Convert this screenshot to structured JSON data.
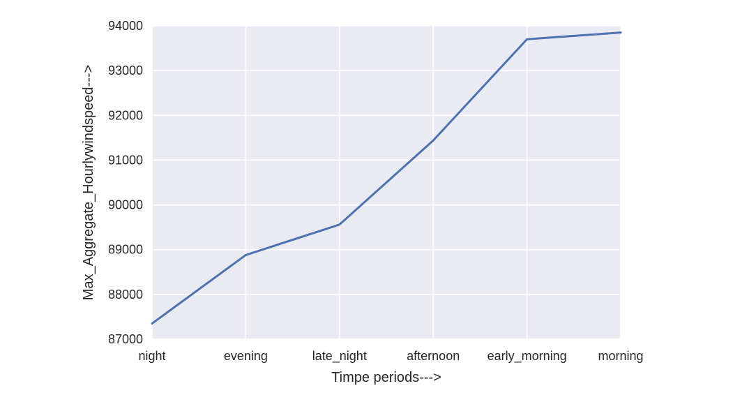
{
  "chart_data": {
    "type": "line",
    "title": "",
    "xlabel": "Timpe periods--->",
    "ylabel": "Max_Aggregate_Hourlywindspeed--->",
    "categories": [
      "night",
      "evening",
      "late_night",
      "afternoon",
      "early_morning",
      "morning"
    ],
    "series": [
      {
        "values": [
          87350,
          88880,
          89560,
          91440,
          93700,
          93850
        ]
      }
    ],
    "ylim": [
      87000,
      94000
    ],
    "yticks": [
      87000,
      88000,
      89000,
      90000,
      91000,
      92000,
      93000,
      94000
    ],
    "ytick_labels": [
      "87000",
      "88000",
      "89000",
      "90000",
      "91000",
      "92000",
      "93000",
      "94000"
    ],
    "grid": true,
    "background_color": "#eaeaf2",
    "line_color": "#4c72b0",
    "grid_color": "#ffffff"
  }
}
